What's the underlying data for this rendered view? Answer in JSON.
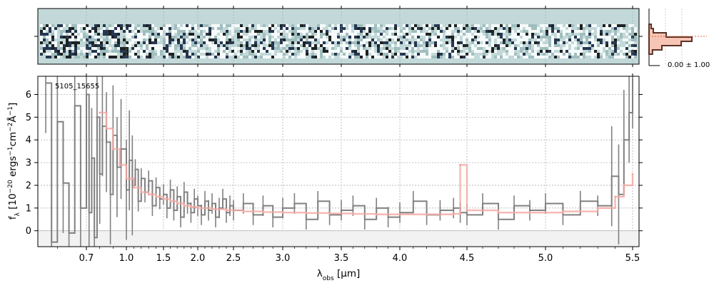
{
  "figure": {
    "object_label": "5105_15655",
    "hist_stat": "0.00 ± 1.00"
  },
  "chart_data": {
    "type": "line",
    "xlabel": "λ_obs [μm]",
    "ylabel": "f_λ [10^-20 ergs^-1 cm^-2 Å^-1]",
    "x_ticks": [
      0.7,
      1.0,
      1.5,
      2.0,
      2.5,
      3.0,
      3.5,
      4.0,
      4.5,
      5.0,
      5.5
    ],
    "x_tick_labels": [
      "0.7",
      "1.0",
      "1.5",
      "2.0",
      "2.5",
      "3.0",
      "3.5",
      "4.0",
      "4.5",
      "5.0",
      "5.5"
    ],
    "y_ticks": [
      0,
      1,
      2,
      3,
      4,
      5,
      6
    ],
    "y_tick_labels": [
      "0",
      "1",
      "2",
      "3",
      "4",
      "5",
      "6"
    ],
    "ylim": [
      -0.7,
      6.8
    ],
    "xlim": [
      0.55,
      5.52
    ],
    "grid": true,
    "series": [
      {
        "role": "data",
        "color": "#808080",
        "x": [
          0.56,
          0.58,
          0.6,
          0.62,
          0.64,
          0.66,
          0.68,
          0.7,
          0.72,
          0.74,
          0.76,
          0.78,
          0.8,
          0.82,
          0.85,
          0.88,
          0.9,
          0.93,
          0.96,
          1.0,
          1.04,
          1.08,
          1.12,
          1.16,
          1.2,
          1.25,
          1.3,
          1.35,
          1.4,
          1.45,
          1.5,
          1.55,
          1.6,
          1.65,
          1.7,
          1.75,
          1.8,
          1.85,
          1.9,
          1.95,
          2.0,
          2.05,
          2.1,
          2.15,
          2.2,
          2.25,
          2.3,
          2.35,
          2.4,
          2.45,
          2.5,
          2.6,
          2.7,
          2.8,
          2.9,
          3.0,
          3.1,
          3.2,
          3.3,
          3.4,
          3.5,
          3.6,
          3.7,
          3.8,
          3.9,
          4.0,
          4.1,
          4.2,
          4.3,
          4.4,
          4.45,
          4.5,
          4.6,
          4.7,
          4.8,
          4.9,
          5.0,
          5.1,
          5.2,
          5.3,
          5.38,
          5.42,
          5.45,
          5.48,
          5.5
        ],
        "y": [
          6.5,
          -0.5,
          4.8,
          2.1,
          -0.1,
          5.5,
          1.0,
          6.0,
          0.8,
          3.2,
          -0.3,
          5.0,
          2.5,
          4.6,
          3.9,
          1.6,
          4.2,
          2.8,
          3.6,
          1.8,
          3.1,
          2.0,
          2.7,
          1.3,
          2.3,
          1.7,
          2.2,
          1.1,
          1.9,
          1.4,
          1.6,
          1.0,
          1.8,
          0.9,
          1.5,
          0.6,
          1.7,
          1.2,
          0.8,
          1.4,
          1.1,
          0.7,
          1.3,
          0.9,
          1.2,
          0.6,
          1.0,
          1.4,
          0.8,
          1.1,
          0.9,
          1.2,
          0.7,
          1.1,
          0.6,
          1.0,
          1.2,
          0.5,
          1.3,
          0.7,
          0.9,
          1.1,
          0.5,
          1.0,
          0.6,
          0.8,
          1.3,
          0.7,
          0.9,
          1.0,
          0.8,
          0.7,
          1.2,
          0.5,
          1.1,
          0.9,
          1.2,
          0.7,
          1.3,
          1.1,
          2.4,
          1.6,
          4.0,
          5.2,
          6.7
        ]
      },
      {
        "role": "model",
        "color": "#f4a6a0",
        "x": [
          0.8,
          0.85,
          0.9,
          0.95,
          1.0,
          1.1,
          1.2,
          1.3,
          1.4,
          1.5,
          1.6,
          1.7,
          1.8,
          1.9,
          2.0,
          2.2,
          2.4,
          2.6,
          2.8,
          3.0,
          3.2,
          3.4,
          3.6,
          3.8,
          4.0,
          4.2,
          4.4,
          4.45,
          4.5,
          4.7,
          4.9,
          5.1,
          5.3,
          5.4,
          5.45,
          5.5
        ],
        "y": [
          5.2,
          4.5,
          3.6,
          2.9,
          2.3,
          1.9,
          1.7,
          1.6,
          1.5,
          1.4,
          1.3,
          1.2,
          1.1,
          1.05,
          1.0,
          0.95,
          0.9,
          0.85,
          0.82,
          0.8,
          0.78,
          0.76,
          0.74,
          0.72,
          0.72,
          0.72,
          0.75,
          2.9,
          0.9,
          0.8,
          0.8,
          0.85,
          1.0,
          1.5,
          2.0,
          2.5
        ]
      }
    ],
    "histogram": {
      "colors": {
        "outline": "#5a3225",
        "fill": "#f7c5b5",
        "reference": "#e8603c"
      },
      "levels": [
        0.05,
        0.1,
        0.4,
        1.0,
        0.75,
        0.3,
        0.08
      ]
    },
    "two_d_panel": {
      "background_color": "#c3d9d9",
      "noise_colors": [
        "#ffffff",
        "#000000",
        "#0b1a3a",
        "#9ab8b8"
      ]
    }
  }
}
